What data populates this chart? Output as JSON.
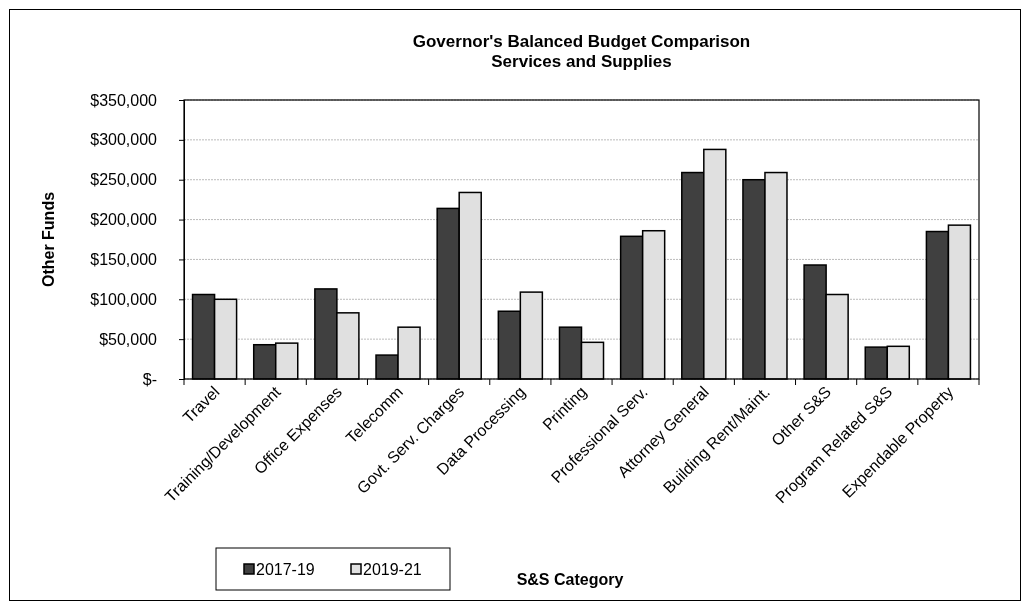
{
  "chart_data": {
    "type": "bar",
    "title": "Governor's Balanced Budget Comparison\nServices and Supplies",
    "xlabel": "S&S Category",
    "ylabel": "Other Funds",
    "categories": [
      "Travel",
      "Training/Development",
      "Office Expenses",
      "Telecomm",
      "Govt. Serv. Charges",
      "Data Processing",
      "Printing",
      "Professional Serv.",
      "Attorney General",
      "Building Rent/Maint.",
      "Other S&S",
      "Program Related S&S",
      "Expendable Property"
    ],
    "series": [
      {
        "name": "2017-19",
        "color": "#404040",
        "values": [
          106000,
          43000,
          113000,
          30000,
          214000,
          85000,
          65000,
          179000,
          259000,
          250000,
          143000,
          40000,
          185000
        ]
      },
      {
        "name": "2019-21",
        "color": "#e0e0e0",
        "values": [
          100000,
          45000,
          83000,
          65000,
          234000,
          109000,
          46000,
          186000,
          288000,
          259000,
          106000,
          41000,
          193000
        ]
      }
    ],
    "ylim": [
      0,
      350000
    ],
    "yticks": [
      {
        "value": 0,
        "label": "$-"
      },
      {
        "value": 50000,
        "label": "$50,000"
      },
      {
        "value": 100000,
        "label": "$100,000"
      },
      {
        "value": 150000,
        "label": "$150,000"
      },
      {
        "value": 200000,
        "label": "$200,000"
      },
      {
        "value": 250000,
        "label": "$250,000"
      },
      {
        "value": 300000,
        "label": "$300,000"
      },
      {
        "value": 350000,
        "label": "$350,000"
      }
    ],
    "grid": "y",
    "legend": "bottom left"
  }
}
